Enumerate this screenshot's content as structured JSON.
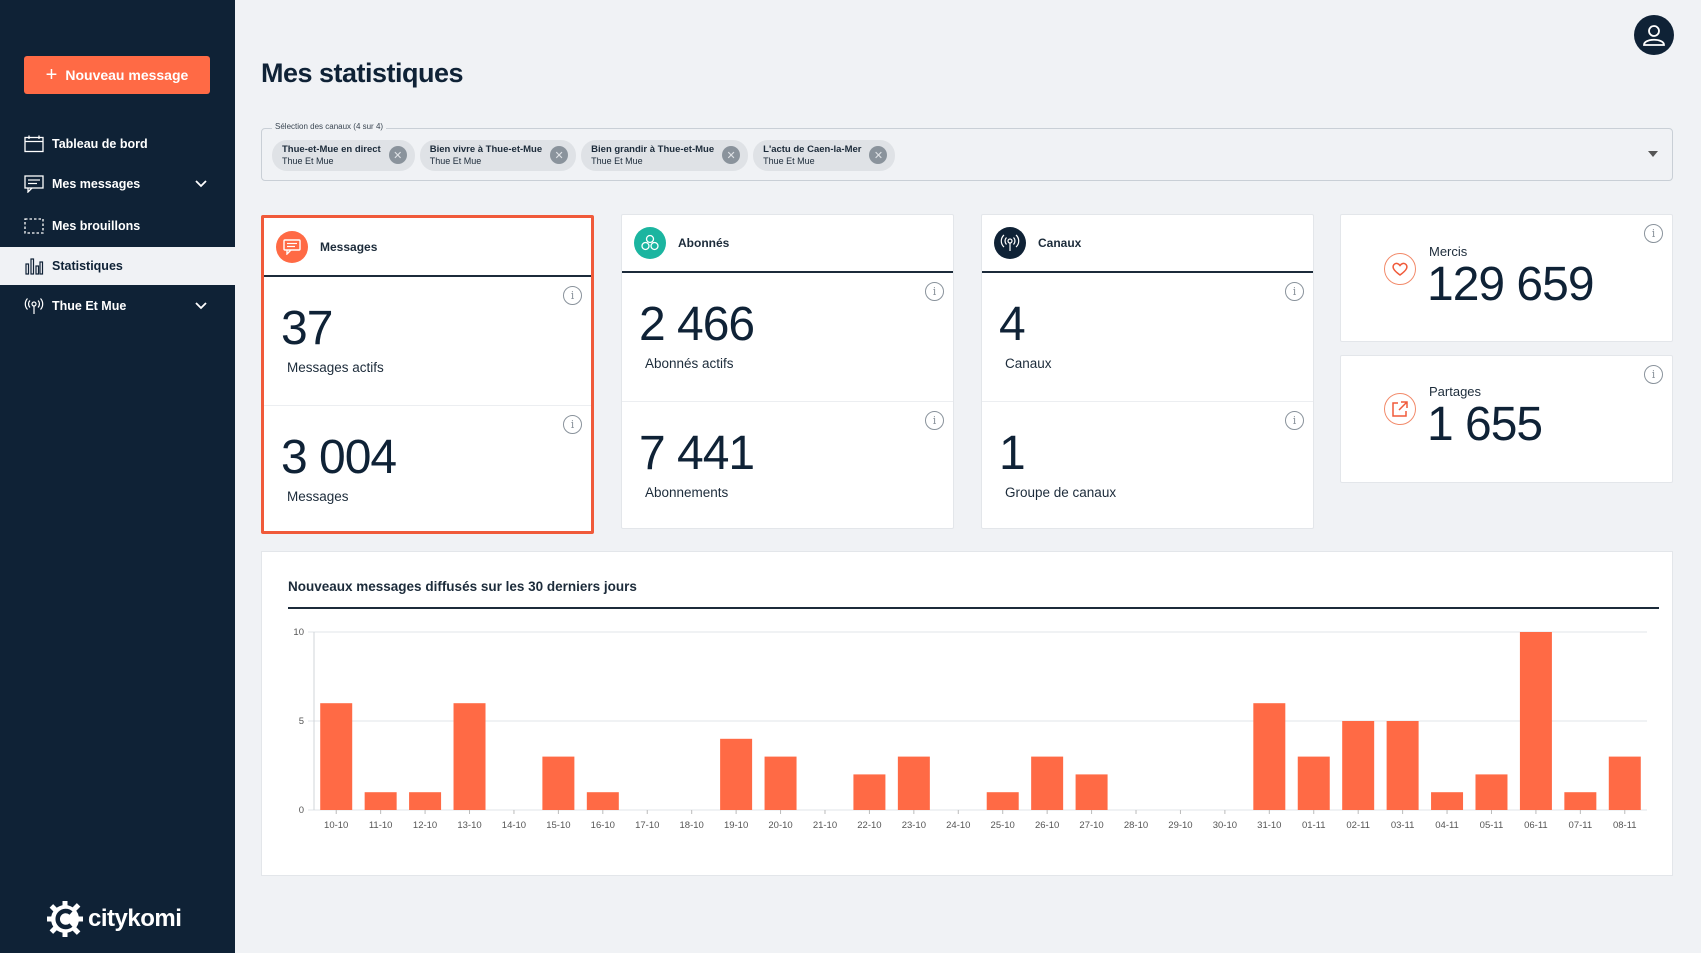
{
  "sidebar": {
    "new_message_label": "Nouveau message",
    "items": [
      {
        "label": "Tableau de bord",
        "icon": "calendar-icon"
      },
      {
        "label": "Mes messages",
        "icon": "message-icon"
      },
      {
        "label": "Mes brouillons",
        "icon": "draft-icon"
      },
      {
        "label": "Statistiques",
        "icon": "bar-chart-icon"
      },
      {
        "label": "Thue Et Mue",
        "icon": "broadcast-icon"
      }
    ],
    "brand": "citykomi"
  },
  "page": {
    "title": "Mes statistiques"
  },
  "channel_select": {
    "legend": "Sélection des canaux (4 sur 4)",
    "chips": [
      {
        "name": "Thue-et-Mue en direct",
        "sub": "Thue Et Mue"
      },
      {
        "name": "Bien vivre à Thue-et-Mue",
        "sub": "Thue Et Mue"
      },
      {
        "name": "Bien grandir à Thue-et-Mue",
        "sub": "Thue Et Mue"
      },
      {
        "name": "L'actu de Caen-la-Mer",
        "sub": "Thue Et Mue"
      }
    ]
  },
  "cards": {
    "messages": {
      "title": "Messages",
      "stats": [
        {
          "value": "37",
          "label": "Messages actifs"
        },
        {
          "value": "3 004",
          "label": "Messages"
        }
      ]
    },
    "abonnes": {
      "title": "Abonnés",
      "stats": [
        {
          "value": "2 466",
          "label": "Abonnés actifs"
        },
        {
          "value": "7 441",
          "label": "Abonnements"
        }
      ]
    },
    "canaux": {
      "title": "Canaux",
      "stats": [
        {
          "value": "4",
          "label": "Canaux"
        },
        {
          "value": "1",
          "label": "Groupe de canaux"
        }
      ]
    },
    "mercis": {
      "label": "Mercis",
      "value": "129 659"
    },
    "partages": {
      "label": "Partages",
      "value": "1 655"
    }
  },
  "colors": {
    "accent": "#ff6a45",
    "navy": "#0f2236",
    "teal": "#1bb5a0",
    "bar": "#ff6a45"
  },
  "chart_data": {
    "type": "bar",
    "title": "Nouveaux messages diffusés sur les 30 derniers jours",
    "categories": [
      "10-10",
      "11-10",
      "12-10",
      "13-10",
      "14-10",
      "15-10",
      "16-10",
      "17-10",
      "18-10",
      "19-10",
      "20-10",
      "21-10",
      "22-10",
      "23-10",
      "24-10",
      "25-10",
      "26-10",
      "27-10",
      "28-10",
      "29-10",
      "30-10",
      "31-10",
      "01-11",
      "02-11",
      "03-11",
      "04-11",
      "05-11",
      "06-11",
      "07-11",
      "08-11"
    ],
    "values": [
      6,
      1,
      1,
      6,
      0,
      3,
      1,
      0,
      0,
      4,
      3,
      0,
      2,
      3,
      0,
      1,
      3,
      2,
      0,
      0,
      0,
      6,
      3,
      5,
      5,
      1,
      2,
      10,
      1,
      3
    ],
    "yticks": [
      0,
      5,
      10
    ],
    "ylim": [
      0,
      10
    ],
    "grid": true
  }
}
